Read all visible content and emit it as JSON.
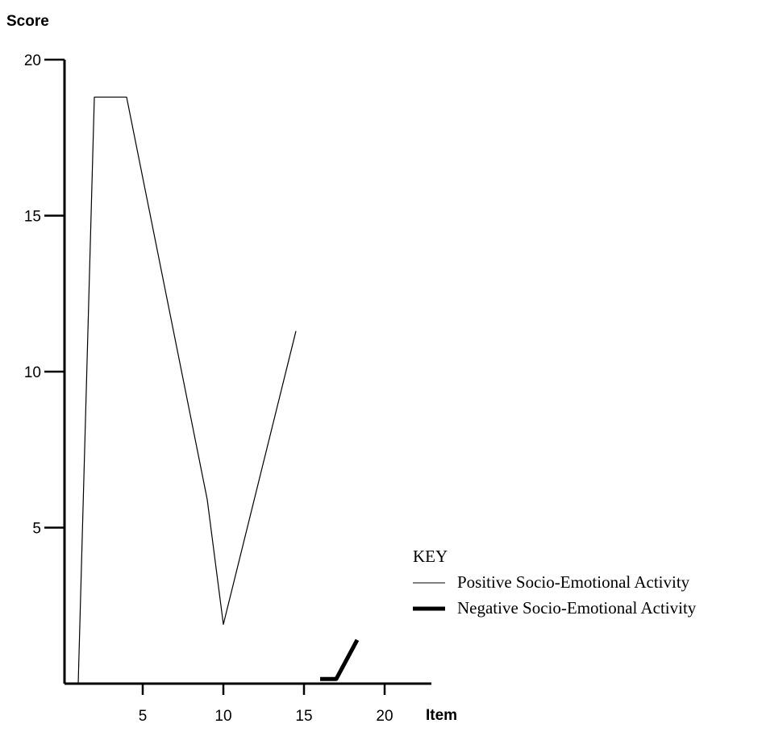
{
  "chart_data": {
    "type": "line",
    "title": "",
    "xlabel": "Item",
    "ylabel": "Score",
    "xlim": [
      -0.2,
      23.0
    ],
    "ylim": [
      0,
      20
    ],
    "xticks": [
      5,
      10,
      15,
      20
    ],
    "yticks": [
      5,
      10,
      15,
      20
    ],
    "grid": false,
    "legend": {
      "title": "KEY",
      "position": "right",
      "entries": [
        "Positive Socio-Emotional Activity",
        "Negative Socio-Emotional Activity"
      ]
    },
    "series": [
      {
        "name": "Positive Socio-Emotional Activity",
        "line_style": "thin",
        "color": "#000000",
        "x": [
          1,
          2,
          4,
          9,
          10,
          14.5
        ],
        "y": [
          0,
          18.8,
          18.8,
          5.9,
          1.9,
          11.3
        ]
      },
      {
        "name": "Negative Socio-Emotional Activity",
        "line_style": "thick",
        "color": "#000000",
        "x": [
          16,
          17,
          18.3
        ],
        "y": [
          0.15,
          0.15,
          1.4
        ]
      }
    ]
  }
}
